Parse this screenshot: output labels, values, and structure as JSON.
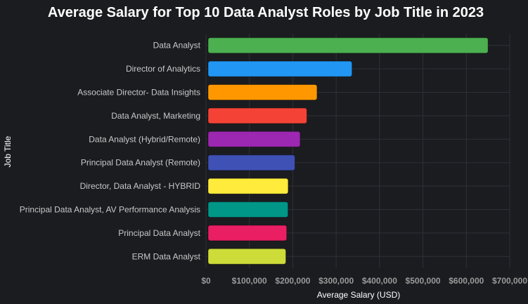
{
  "chart_data": {
    "type": "bar",
    "orientation": "horizontal",
    "title": "Average Salary for Top 10 Data Analyst Roles by Job Title in 2023",
    "xlabel": "Average Salary (USD)",
    "ylabel": "Job Title",
    "categories": [
      "Data Analyst",
      "Director of Analytics",
      "Associate Director- Data Insights",
      "Data Analyst, Marketing",
      "Data Analyst (Hybrid/Remote)",
      "Principal Data Analyst (Remote)",
      "Director, Data Analyst - HYBRID",
      "Principal Data Analyst, AV Performance Analysis",
      "Principal Data Analyst",
      "ERM Data Analyst"
    ],
    "values": [
      650000,
      336500,
      255830,
      232423,
      217000,
      205000,
      189309,
      189000,
      186000,
      184000
    ],
    "colors": [
      "#4caf50",
      "#2196f3",
      "#ff9800",
      "#f44336",
      "#9c27b0",
      "#3f51b5",
      "#ffeb3b",
      "#009688",
      "#e91e63",
      "#cddc39"
    ],
    "xlim": [
      0,
      700000
    ],
    "x_ticks": [
      0,
      100000,
      200000,
      300000,
      400000,
      500000,
      600000,
      700000
    ],
    "x_tick_labels": [
      "$0",
      "$100,000",
      "$200,000",
      "$300,000",
      "$400,000",
      "$500,000",
      "$600,000",
      "$700,000"
    ],
    "grid": true,
    "background": "#1b1c20"
  }
}
